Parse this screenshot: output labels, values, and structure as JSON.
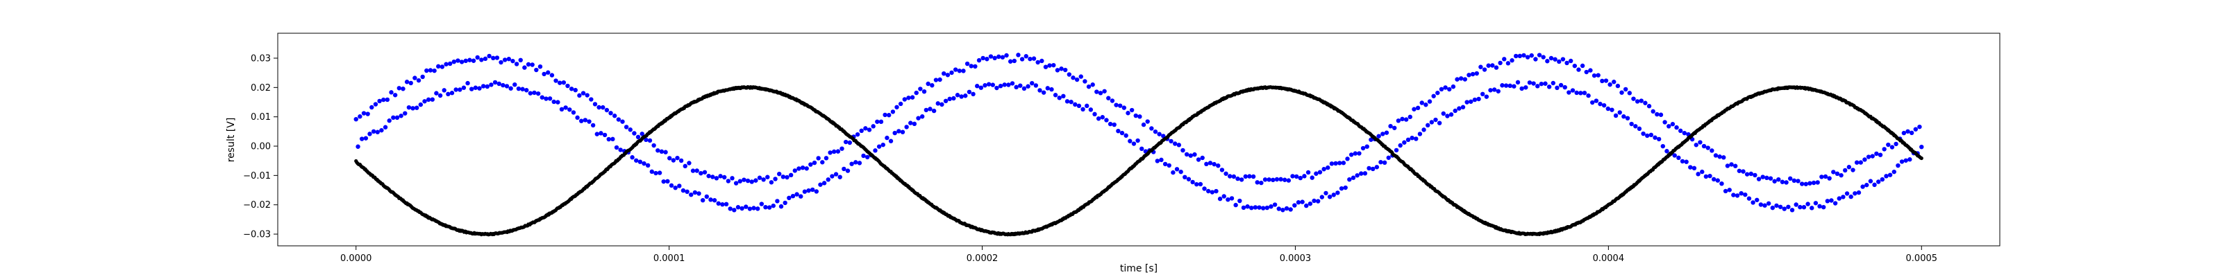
{
  "chart_data": {
    "type": "scatter",
    "title": "",
    "xlabel": "time [s]",
    "ylabel": "result [V]",
    "xlim": [
      -2.5e-05,
      0.000525
    ],
    "ylim": [
      -0.034,
      0.0385
    ],
    "grid": false,
    "x_ticks": [
      0.0,
      0.0001,
      0.0002,
      0.0003,
      0.0004,
      0.0005
    ],
    "x_tick_labels": [
      "0.0000",
      "0.0001",
      "0.0002",
      "0.0003",
      "0.0004",
      "0.0005"
    ],
    "y_ticks": [
      -0.03,
      -0.02,
      -0.01,
      0.0,
      0.01,
      0.02,
      0.03
    ],
    "y_tick_labels": [
      "−0.03",
      "−0.02",
      "−0.01",
      "0.00",
      "0.01",
      "0.02",
      "0.03"
    ],
    "series": [
      {
        "color": "#0000ff",
        "marker": "dot",
        "description_values": "noisy sinusoid, two interleaved traces",
        "x_range": [
          0.0,
          0.0005
        ],
        "samples": 800,
        "sinusoid": {
          "offset": 0.0045,
          "amplitude": 0.021,
          "period": 0.000167,
          "phase_peak_x": 4.2e-05,
          "band_halfwidth": 0.0045,
          "noise": 0.0012
        }
      },
      {
        "color": "#000000",
        "marker": "dot",
        "x_range": [
          0.0,
          0.0005
        ],
        "samples": 2000,
        "sinusoid": {
          "offset": -0.005,
          "amplitude": 0.025,
          "period": 0.000167,
          "phase_peak_x": 0.000125,
          "band_halfwidth": 0.0,
          "noise": 0.0002
        }
      }
    ]
  }
}
